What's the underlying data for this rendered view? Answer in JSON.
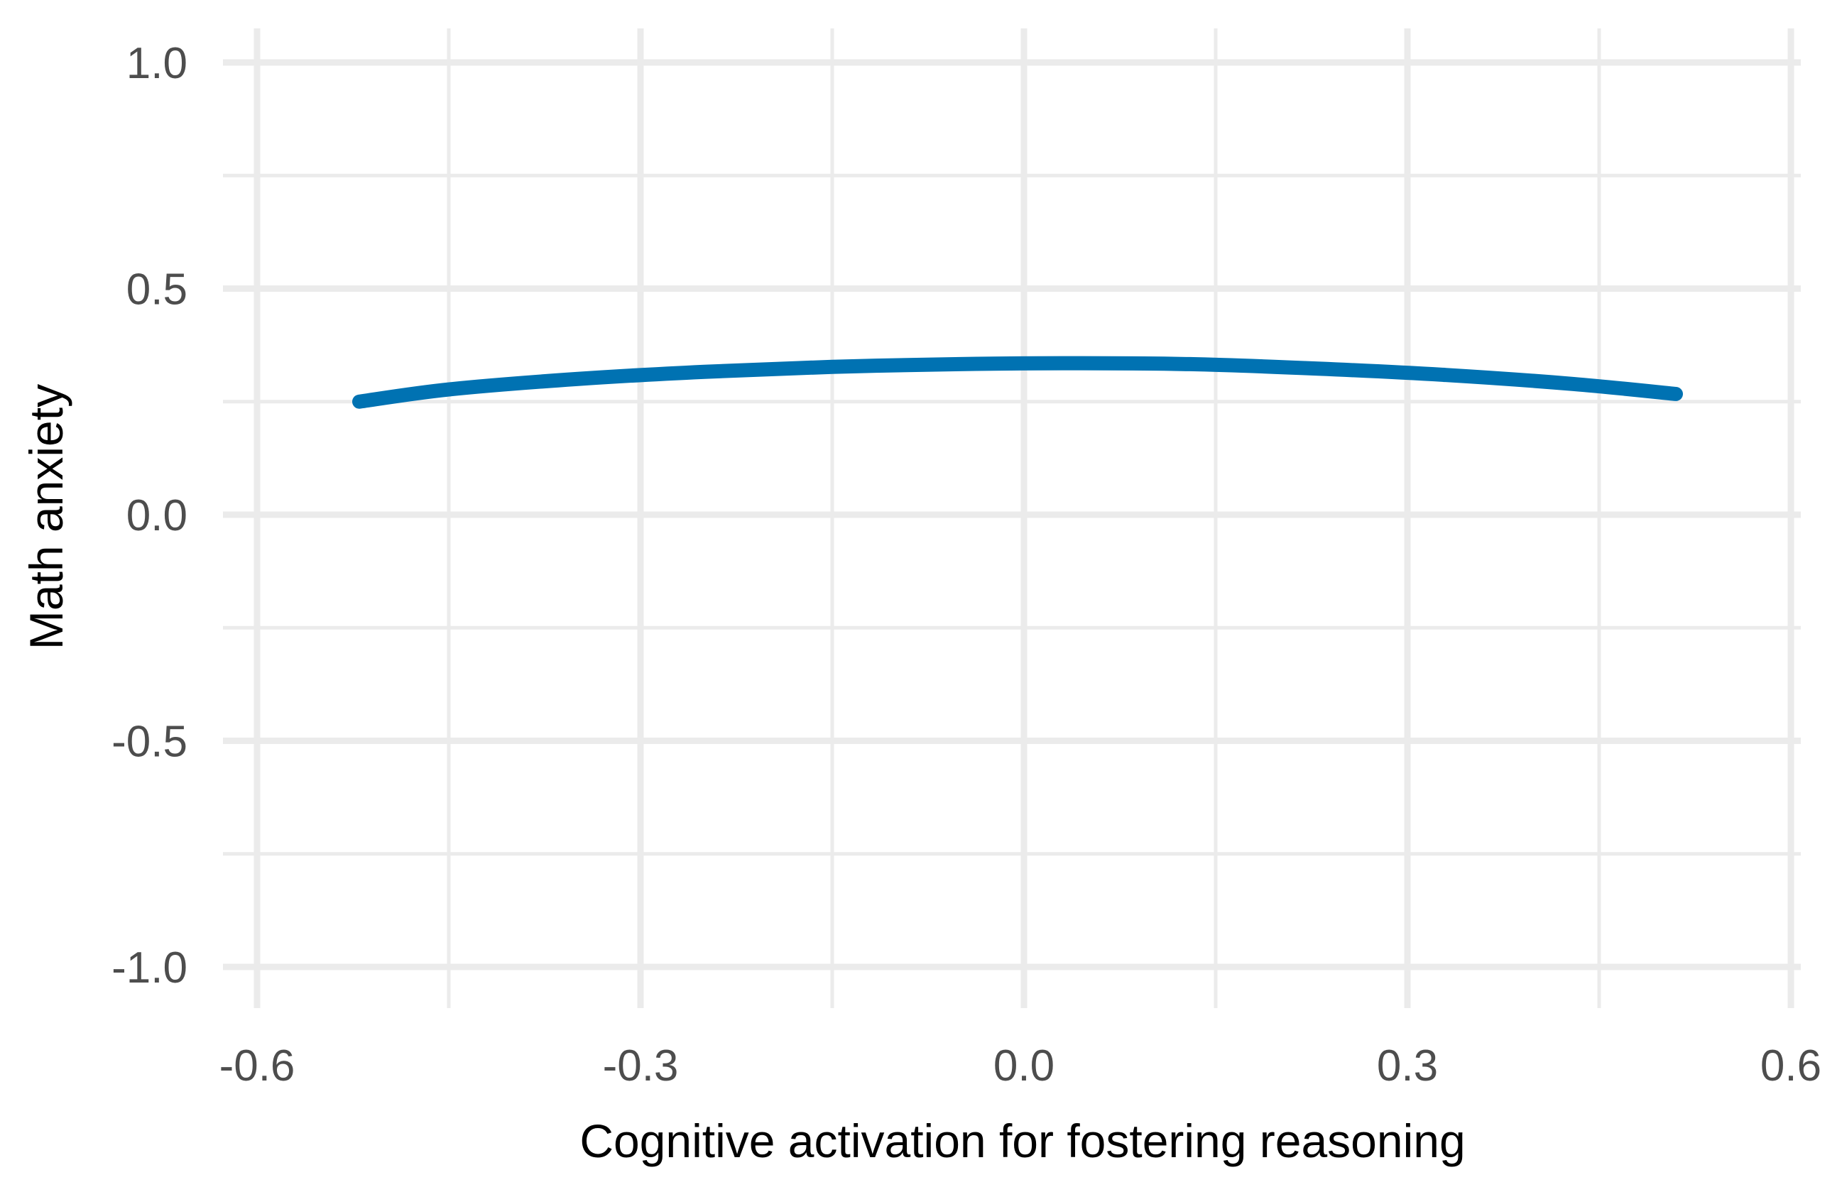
{
  "chart_data": {
    "type": "line",
    "xlabel": "Cognitive activation for fostering reasoning",
    "ylabel": "Math anxiety",
    "xlim": [
      -0.6,
      0.6
    ],
    "ylim": [
      -1.0,
      1.0
    ],
    "x_ticks": [
      "-0.6",
      "-0.3",
      "0.0",
      "0.3",
      "0.6"
    ],
    "y_ticks": [
      "1.0",
      "0.5",
      "0.0",
      "-0.5",
      "-1.0"
    ],
    "grid": true,
    "series": [
      {
        "color": "#0072b2",
        "x": [
          -0.52,
          -0.45,
          -0.35,
          -0.25,
          -0.15,
          -0.05,
          0.03,
          0.13,
          0.23,
          0.33,
          0.43,
          0.51
        ],
        "values": [
          0.25,
          0.277,
          0.3,
          0.316,
          0.327,
          0.333,
          0.335,
          0.333,
          0.323,
          0.309,
          0.289,
          0.267
        ]
      }
    ]
  }
}
